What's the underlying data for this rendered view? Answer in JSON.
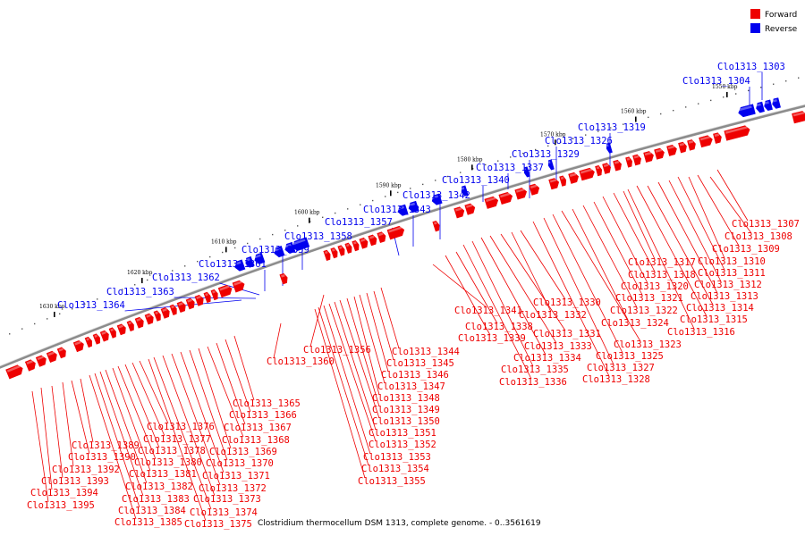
{
  "legend": {
    "forward_label": "Forward",
    "reverse_label": "Reverse",
    "forward_color": "#ee0000",
    "reverse_color": "#0000ee"
  },
  "caption": "Clostridium thermocellum DSM 1313, complete genome. - 0..3561619",
  "ticks": [
    "1550 kbp",
    "1560 kbp",
    "1570 kbp",
    "1580 kbp",
    "1590 kbp",
    "1600 kbp",
    "1610 kbp",
    "1620 kbp",
    "1630 kbp"
  ],
  "reverse_genes": [
    "Clo1313_1303",
    "Clo1313_1304",
    "Clo1313_1319",
    "Clo1313_1326",
    "Clo1313_1329",
    "Clo1313_1337",
    "Clo1313_1340",
    "Clo1313_1342",
    "Clo1313_1343",
    "Clo1313_1357",
    "Clo1313_1358",
    "Clo1313_1359",
    "Clo1313_1361",
    "Clo1313_1362",
    "Clo1313_1363",
    "Clo1313_1364"
  ],
  "forward_genes_right": [
    "Clo1313_1307",
    "Clo1313_1308",
    "Clo1313_1309",
    "Clo1313_1310",
    "Clo1313_1311",
    "Clo1313_1312",
    "Clo1313_1313",
    "Clo1313_1314",
    "Clo1313_1315",
    "Clo1313_1316",
    "Clo1313_1317",
    "Clo1313_1318",
    "Clo1313_1320",
    "Clo1313_1321",
    "Clo1313_1322",
    "Clo1313_1324",
    "Clo1313_1323",
    "Clo1313_1325",
    "Clo1313_1327",
    "Clo1313_1328"
  ],
  "forward_genes_mid": [
    "Clo1313_1330",
    "Clo1313_1332",
    "Clo1313_1331",
    "Clo1313_1333",
    "Clo1313_1334",
    "Clo1313_1335",
    "Clo1313_1336",
    "Clo1313_1341",
    "Clo1313_1338",
    "Clo1313_1339"
  ],
  "forward_genes_center": [
    "Clo1313_1344",
    "Clo1313_1345",
    "Clo1313_1346",
    "Clo1313_1347",
    "Clo1313_1348",
    "Clo1313_1349",
    "Clo1313_1350",
    "Clo1313_1351",
    "Clo1313_1352",
    "Clo1313_1353",
    "Clo1313_1354",
    "Clo1313_1355",
    "Clo1313_1356",
    "Clo1313_1360"
  ],
  "forward_genes_left": [
    "Clo1313_1365",
    "Clo1313_1366",
    "Clo1313_1367",
    "Clo1313_1368",
    "Clo1313_1369",
    "Clo1313_1370",
    "Clo1313_1371",
    "Clo1313_1372",
    "Clo1313_1373",
    "Clo1313_1374",
    "Clo1313_1375",
    "Clo1313_1376",
    "Clo1313_1377",
    "Clo1313_1378",
    "Clo1313_1380",
    "Clo1313_1381",
    "Clo1313_1382",
    "Clo1313_1383",
    "Clo1313_1384",
    "Clo1313_1385",
    "Clo1313_1389",
    "Clo1313_1390",
    "Clo1313_1392",
    "Clo1313_1393",
    "Clo1313_1394",
    "Clo1313_1395"
  ]
}
